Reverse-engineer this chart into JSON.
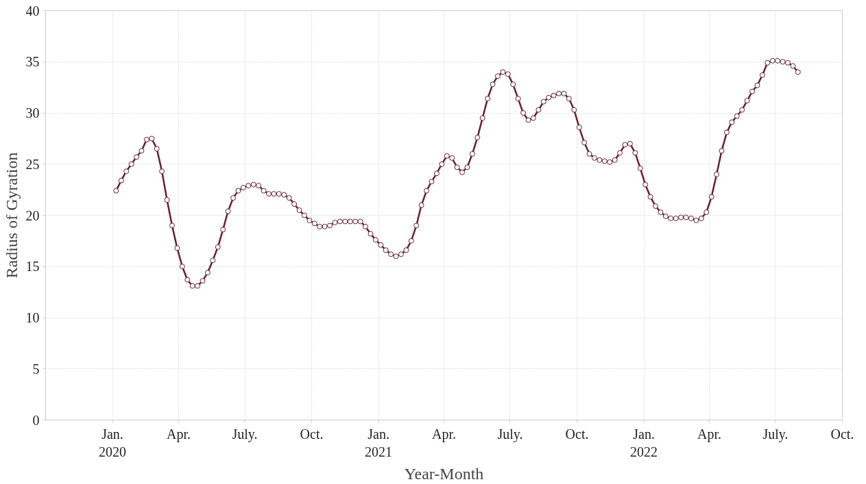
{
  "chart_data": {
    "type": "line",
    "xlabel": "Year-Month",
    "ylabel": "Radius of Gyration",
    "x": [
      "2020-01-06",
      "2020-01-13",
      "2020-01-20",
      "2020-01-27",
      "2020-02-03",
      "2020-02-10",
      "2020-02-17",
      "2020-02-24",
      "2020-03-02",
      "2020-03-09",
      "2020-03-16",
      "2020-03-23",
      "2020-03-30",
      "2020-04-06",
      "2020-04-13",
      "2020-04-20",
      "2020-04-27",
      "2020-05-04",
      "2020-05-11",
      "2020-05-18",
      "2020-05-25",
      "2020-06-01",
      "2020-06-08",
      "2020-06-15",
      "2020-06-22",
      "2020-06-29",
      "2020-07-06",
      "2020-07-13",
      "2020-07-20",
      "2020-07-27",
      "2020-08-03",
      "2020-08-10",
      "2020-08-17",
      "2020-08-24",
      "2020-08-31",
      "2020-09-07",
      "2020-09-14",
      "2020-09-21",
      "2020-09-28",
      "2020-10-05",
      "2020-10-12",
      "2020-10-19",
      "2020-10-26",
      "2020-11-02",
      "2020-11-09",
      "2020-11-16",
      "2020-11-23",
      "2020-11-30",
      "2020-12-07",
      "2020-12-14",
      "2020-12-21",
      "2020-12-28",
      "2021-01-04",
      "2021-01-11",
      "2021-01-18",
      "2021-01-25",
      "2021-02-01",
      "2021-02-08",
      "2021-02-15",
      "2021-02-22",
      "2021-03-01",
      "2021-03-08",
      "2021-03-15",
      "2021-03-22",
      "2021-03-29",
      "2021-04-05",
      "2021-04-12",
      "2021-04-19",
      "2021-04-26",
      "2021-05-03",
      "2021-05-10",
      "2021-05-17",
      "2021-05-24",
      "2021-05-31",
      "2021-06-07",
      "2021-06-14",
      "2021-06-21",
      "2021-06-28",
      "2021-07-05",
      "2021-07-12",
      "2021-07-19",
      "2021-07-26",
      "2021-08-02",
      "2021-08-09",
      "2021-08-16",
      "2021-08-23",
      "2021-08-30",
      "2021-09-06",
      "2021-09-13",
      "2021-09-20",
      "2021-09-27",
      "2021-10-04",
      "2021-10-11",
      "2021-10-18",
      "2021-10-25",
      "2021-11-01",
      "2021-11-08",
      "2021-11-15",
      "2021-11-22",
      "2021-11-29",
      "2021-12-06",
      "2021-12-13",
      "2021-12-20",
      "2021-12-27",
      "2022-01-03",
      "2022-01-10",
      "2022-01-17",
      "2022-01-24",
      "2022-01-31",
      "2022-02-07",
      "2022-02-14",
      "2022-02-21",
      "2022-02-28",
      "2022-03-07",
      "2022-03-14",
      "2022-03-21",
      "2022-03-28",
      "2022-04-04",
      "2022-04-11",
      "2022-04-18",
      "2022-04-25",
      "2022-05-02",
      "2022-05-09",
      "2022-05-16",
      "2022-05-23",
      "2022-05-30",
      "2022-06-06",
      "2022-06-13",
      "2022-06-20",
      "2022-06-27",
      "2022-07-04",
      "2022-07-11",
      "2022-07-18",
      "2022-07-25",
      "2022-08-01"
    ],
    "series": [
      {
        "color": "#6e1e2b",
        "values": [
          22.4,
          23.4,
          24.3,
          25.0,
          25.7,
          26.3,
          27.4,
          27.5,
          26.5,
          24.3,
          21.5,
          19.0,
          16.8,
          15.0,
          13.7,
          13.1,
          13.1,
          13.6,
          14.4,
          15.6,
          16.9,
          18.6,
          20.4,
          21.7,
          22.4,
          22.7,
          22.9,
          23.0,
          22.9,
          22.4,
          22.1,
          22.1,
          22.1,
          22.0,
          21.7,
          21.1,
          20.5,
          20.0,
          19.5,
          19.2,
          18.9,
          18.9,
          19.0,
          19.3,
          19.4,
          19.4,
          19.4,
          19.4,
          19.4,
          18.9,
          18.2,
          17.6,
          17.1,
          16.6,
          16.2,
          16.0,
          16.2,
          16.6,
          17.5,
          19.0,
          21.0,
          22.4,
          23.3,
          24.1,
          25.0,
          25.8,
          25.6,
          24.7,
          24.2,
          24.7,
          26.0,
          27.6,
          29.5,
          31.4,
          32.8,
          33.6,
          34.0,
          33.8,
          32.8,
          31.4,
          30.0,
          29.3,
          29.5,
          30.3,
          31.1,
          31.5,
          31.7,
          31.9,
          31.9,
          31.4,
          30.3,
          28.6,
          27.1,
          26.0,
          25.6,
          25.4,
          25.3,
          25.2,
          25.4,
          26.1,
          26.9,
          27.0,
          26.1,
          24.6,
          23.0,
          21.8,
          20.9,
          20.3,
          19.9,
          19.7,
          19.7,
          19.8,
          19.8,
          19.7,
          19.5,
          19.7,
          20.3,
          21.8,
          24.0,
          26.3,
          28.1,
          29.1,
          29.7,
          30.3,
          31.2,
          32.1,
          32.7,
          33.7,
          34.9,
          35.1,
          35.1,
          35.0,
          34.9,
          34.6,
          34.0
        ]
      }
    ],
    "xlim": [
      "2019-10-01",
      "2022-10-01"
    ],
    "xticks": [
      {
        "value": "2020-01-01",
        "label": "Jan.\n2020"
      },
      {
        "value": "2020-04-01",
        "label": "Apr."
      },
      {
        "value": "2020-07-01",
        "label": "July."
      },
      {
        "value": "2020-10-01",
        "label": "Oct."
      },
      {
        "value": "2021-01-01",
        "label": "Jan.\n2021"
      },
      {
        "value": "2021-04-01",
        "label": "Apr."
      },
      {
        "value": "2021-07-01",
        "label": "July."
      },
      {
        "value": "2021-10-01",
        "label": "Oct."
      },
      {
        "value": "2022-01-01",
        "label": "Jan.\n2022"
      },
      {
        "value": "2022-04-01",
        "label": "Apr."
      },
      {
        "value": "2022-07-01",
        "label": "July."
      },
      {
        "value": "2022-10-01",
        "label": "Oct."
      }
    ],
    "ylim": [
      0,
      40
    ],
    "yticks": [
      0,
      5,
      10,
      15,
      20,
      25,
      30,
      35,
      40
    ],
    "grid": true,
    "marker": "circle",
    "line_style": "solid"
  }
}
